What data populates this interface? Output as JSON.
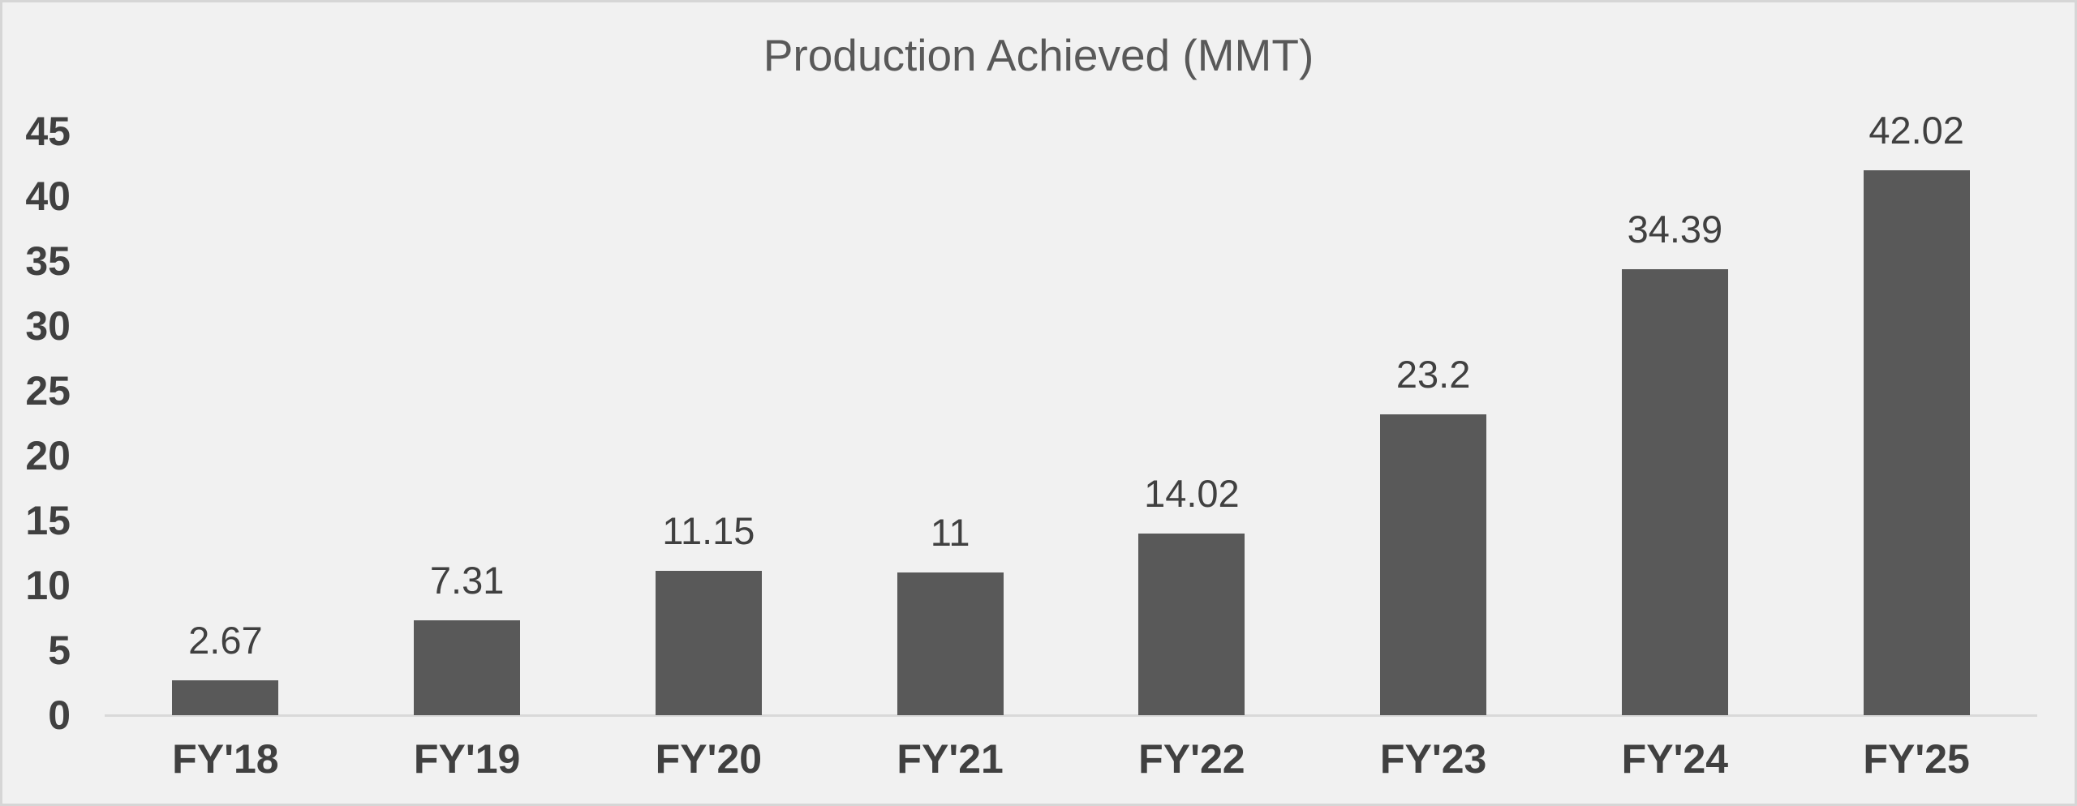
{
  "chart_data": {
    "type": "bar",
    "title": "Production Achieved (MMT)",
    "categories": [
      "FY'18",
      "FY'19",
      "FY'20",
      "FY'21",
      "FY'22",
      "FY'23",
      "FY'24",
      "FY'25"
    ],
    "values": [
      2.67,
      7.31,
      11.15,
      11,
      14.02,
      23.2,
      34.39,
      42.02
    ],
    "data_labels": [
      "2.67",
      "7.31",
      "11.15",
      "11",
      "14.02",
      "23.2",
      "34.39",
      "42.02"
    ],
    "xlabel": "",
    "ylabel": "",
    "ylim": [
      0,
      45
    ],
    "yticks": [
      0,
      5,
      10,
      15,
      20,
      25,
      30,
      35,
      40,
      45
    ],
    "grid": false,
    "legend": false,
    "data_labels_shown": true
  },
  "colors": {
    "background": "#f1f1f1",
    "border": "#d6d6d6",
    "bar": "#595959",
    "axis_line": "#d9d9d9",
    "title_text": "#595959",
    "label_text": "#404040"
  }
}
